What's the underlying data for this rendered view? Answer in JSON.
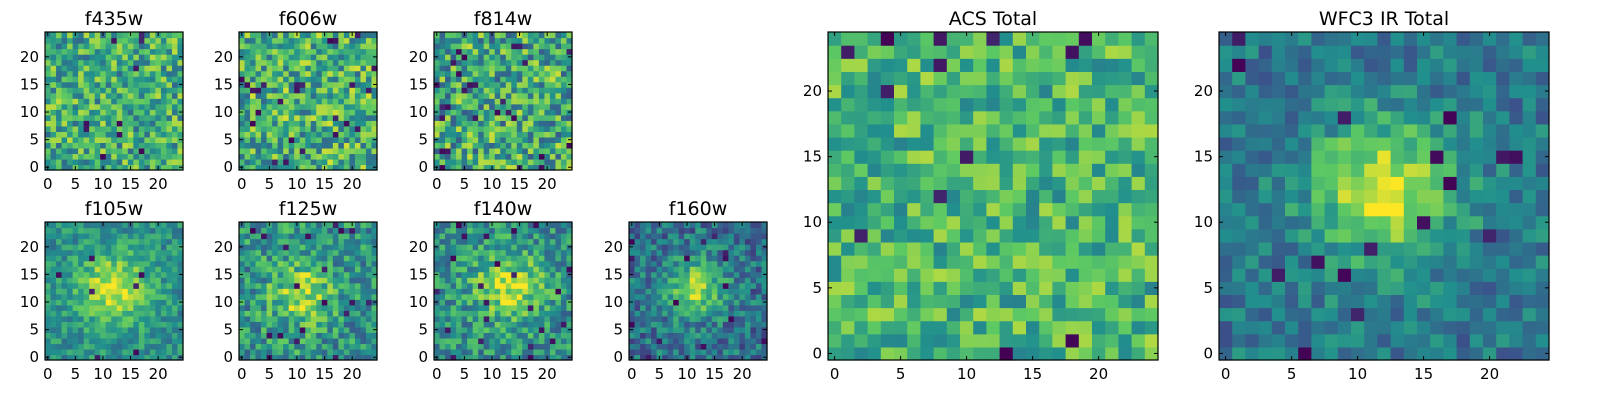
{
  "chart_data": [
    {
      "type": "heatmap",
      "title": "f435w",
      "x_ticks": [
        "0",
        "5",
        "10",
        "15",
        "20"
      ],
      "y_ticks": [
        "0",
        "5",
        "10",
        "15",
        "20"
      ],
      "xlim": [
        0,
        25
      ],
      "ylim": [
        0,
        25
      ],
      "size": 25,
      "pattern": {
        "kind": "noise",
        "seed": 11,
        "base": 0.62,
        "amp": 0.28,
        "holes": 0.025
      }
    },
    {
      "type": "heatmap",
      "title": "f606w",
      "x_ticks": [
        "0",
        "5",
        "10",
        "15",
        "20"
      ],
      "y_ticks": [
        "0",
        "5",
        "10",
        "15",
        "20"
      ],
      "xlim": [
        0,
        25
      ],
      "ylim": [
        0,
        25
      ],
      "size": 25,
      "pattern": {
        "kind": "noise",
        "seed": 23,
        "base": 0.64,
        "amp": 0.3,
        "holes": 0.03
      }
    },
    {
      "type": "heatmap",
      "title": "f814w",
      "x_ticks": [
        "0",
        "5",
        "10",
        "15",
        "20"
      ],
      "y_ticks": [
        "0",
        "5",
        "10",
        "15",
        "20"
      ],
      "xlim": [
        0,
        25
      ],
      "ylim": [
        0,
        25
      ],
      "size": 25,
      "pattern": {
        "kind": "noise",
        "seed": 37,
        "base": 0.6,
        "amp": 0.32,
        "holes": 0.05
      }
    },
    {
      "type": "heatmap",
      "title": "f105w",
      "x_ticks": [
        "0",
        "5",
        "10",
        "15",
        "20"
      ],
      "y_ticks": [
        "0",
        "5",
        "10",
        "15",
        "20"
      ],
      "xlim": [
        0,
        25
      ],
      "ylim": [
        0,
        25
      ],
      "size": 25,
      "pattern": {
        "kind": "source",
        "seed": 41,
        "base": 0.5,
        "amp": 0.16,
        "peak": 0.42,
        "cx": 12,
        "cy": 12.5,
        "sigma": 4.5,
        "holes": 0.015
      }
    },
    {
      "type": "heatmap",
      "title": "f125w",
      "x_ticks": [
        "0",
        "5",
        "10",
        "15",
        "20"
      ],
      "y_ticks": [
        "0",
        "5",
        "10",
        "15",
        "20"
      ],
      "xlim": [
        0,
        25
      ],
      "ylim": [
        0,
        25
      ],
      "size": 25,
      "pattern": {
        "kind": "source",
        "seed": 53,
        "base": 0.52,
        "amp": 0.24,
        "peak": 0.34,
        "cx": 11,
        "cy": 11.5,
        "sigma": 4,
        "holes": 0.035
      }
    },
    {
      "type": "heatmap",
      "title": "f140w",
      "x_ticks": [
        "0",
        "5",
        "10",
        "15",
        "20"
      ],
      "y_ticks": [
        "0",
        "5",
        "10",
        "15",
        "20"
      ],
      "xlim": [
        0,
        25
      ],
      "ylim": [
        0,
        25
      ],
      "size": 25,
      "pattern": {
        "kind": "source",
        "seed": 67,
        "base": 0.5,
        "amp": 0.22,
        "peak": 0.38,
        "cx": 13,
        "cy": 13,
        "sigma": 4.5,
        "holes": 0.03
      }
    },
    {
      "type": "heatmap",
      "title": "f160w",
      "x_ticks": [
        "0",
        "5",
        "10",
        "15",
        "20"
      ],
      "y_ticks": [
        "0",
        "5",
        "10",
        "15",
        "20"
      ],
      "xlim": [
        0,
        25
      ],
      "ylim": [
        0,
        25
      ],
      "size": 25,
      "pattern": {
        "kind": "source",
        "seed": 79,
        "base": 0.38,
        "amp": 0.2,
        "peak": 0.5,
        "cx": 11.5,
        "cy": 12.5,
        "sigma": 3.5,
        "holes": 0.03
      }
    },
    {
      "type": "heatmap",
      "title": "ACS Total",
      "x_ticks": [
        "0",
        "5",
        "10",
        "15",
        "20"
      ],
      "y_ticks": [
        "0",
        "5",
        "10",
        "15",
        "20"
      ],
      "xlim": [
        0,
        25
      ],
      "ylim": [
        0,
        25
      ],
      "size": 25,
      "pattern": {
        "kind": "noise",
        "seed": 97,
        "base": 0.66,
        "amp": 0.22,
        "holes": 0.03
      }
    },
    {
      "type": "heatmap",
      "title": "WFC3 IR Total",
      "x_ticks": [
        "0",
        "5",
        "10",
        "15",
        "20"
      ],
      "y_ticks": [
        "0",
        "5",
        "10",
        "15",
        "20"
      ],
      "xlim": [
        0,
        25
      ],
      "ylim": [
        0,
        25
      ],
      "size": 25,
      "pattern": {
        "kind": "source",
        "seed": 101,
        "base": 0.4,
        "amp": 0.16,
        "peak": 0.55,
        "cx": 12,
        "cy": 12.5,
        "sigma": 3.8,
        "holes": 0.02
      }
    }
  ],
  "colormap": [
    "#440154",
    "#3b528b",
    "#21908d",
    "#5dc963",
    "#fde725"
  ]
}
